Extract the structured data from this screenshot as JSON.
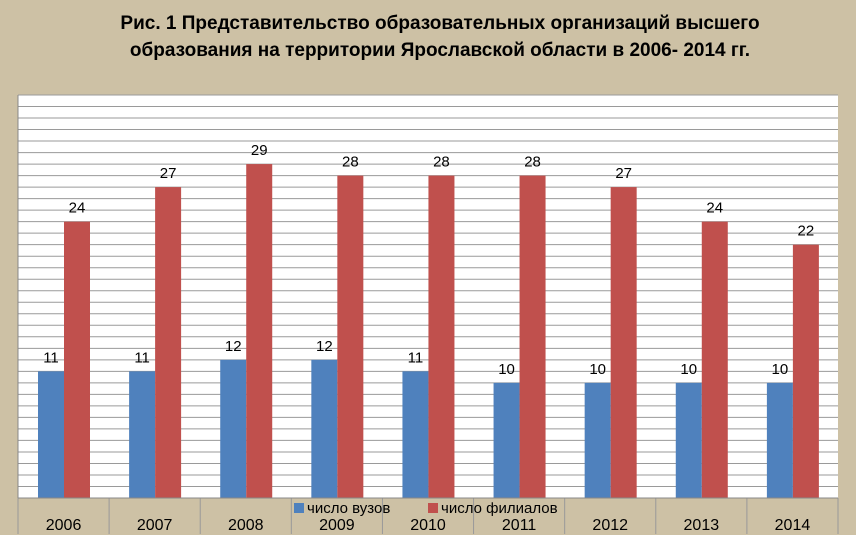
{
  "chart_data": {
    "type": "bar",
    "title": "Рис. 1 Представительство образовательных организаций высшего образования на территории Ярославской области в 2006- 2014 гг.",
    "categories": [
      "2006",
      "2007",
      "2008",
      "2009",
      "2010",
      "2011",
      "2012",
      "2013",
      "2014"
    ],
    "series": [
      {
        "name": "число вузов",
        "color": "#4f81bd",
        "values": [
          11,
          11,
          12,
          12,
          11,
          10,
          10,
          10,
          10
        ]
      },
      {
        "name": "число филиалов",
        "color": "#c0504d",
        "values": [
          24,
          27,
          29,
          28,
          28,
          28,
          27,
          24,
          22
        ]
      }
    ],
    "ylim": [
      0,
      35
    ],
    "grid": true,
    "legend_position": "bottom",
    "data_labels": true
  }
}
